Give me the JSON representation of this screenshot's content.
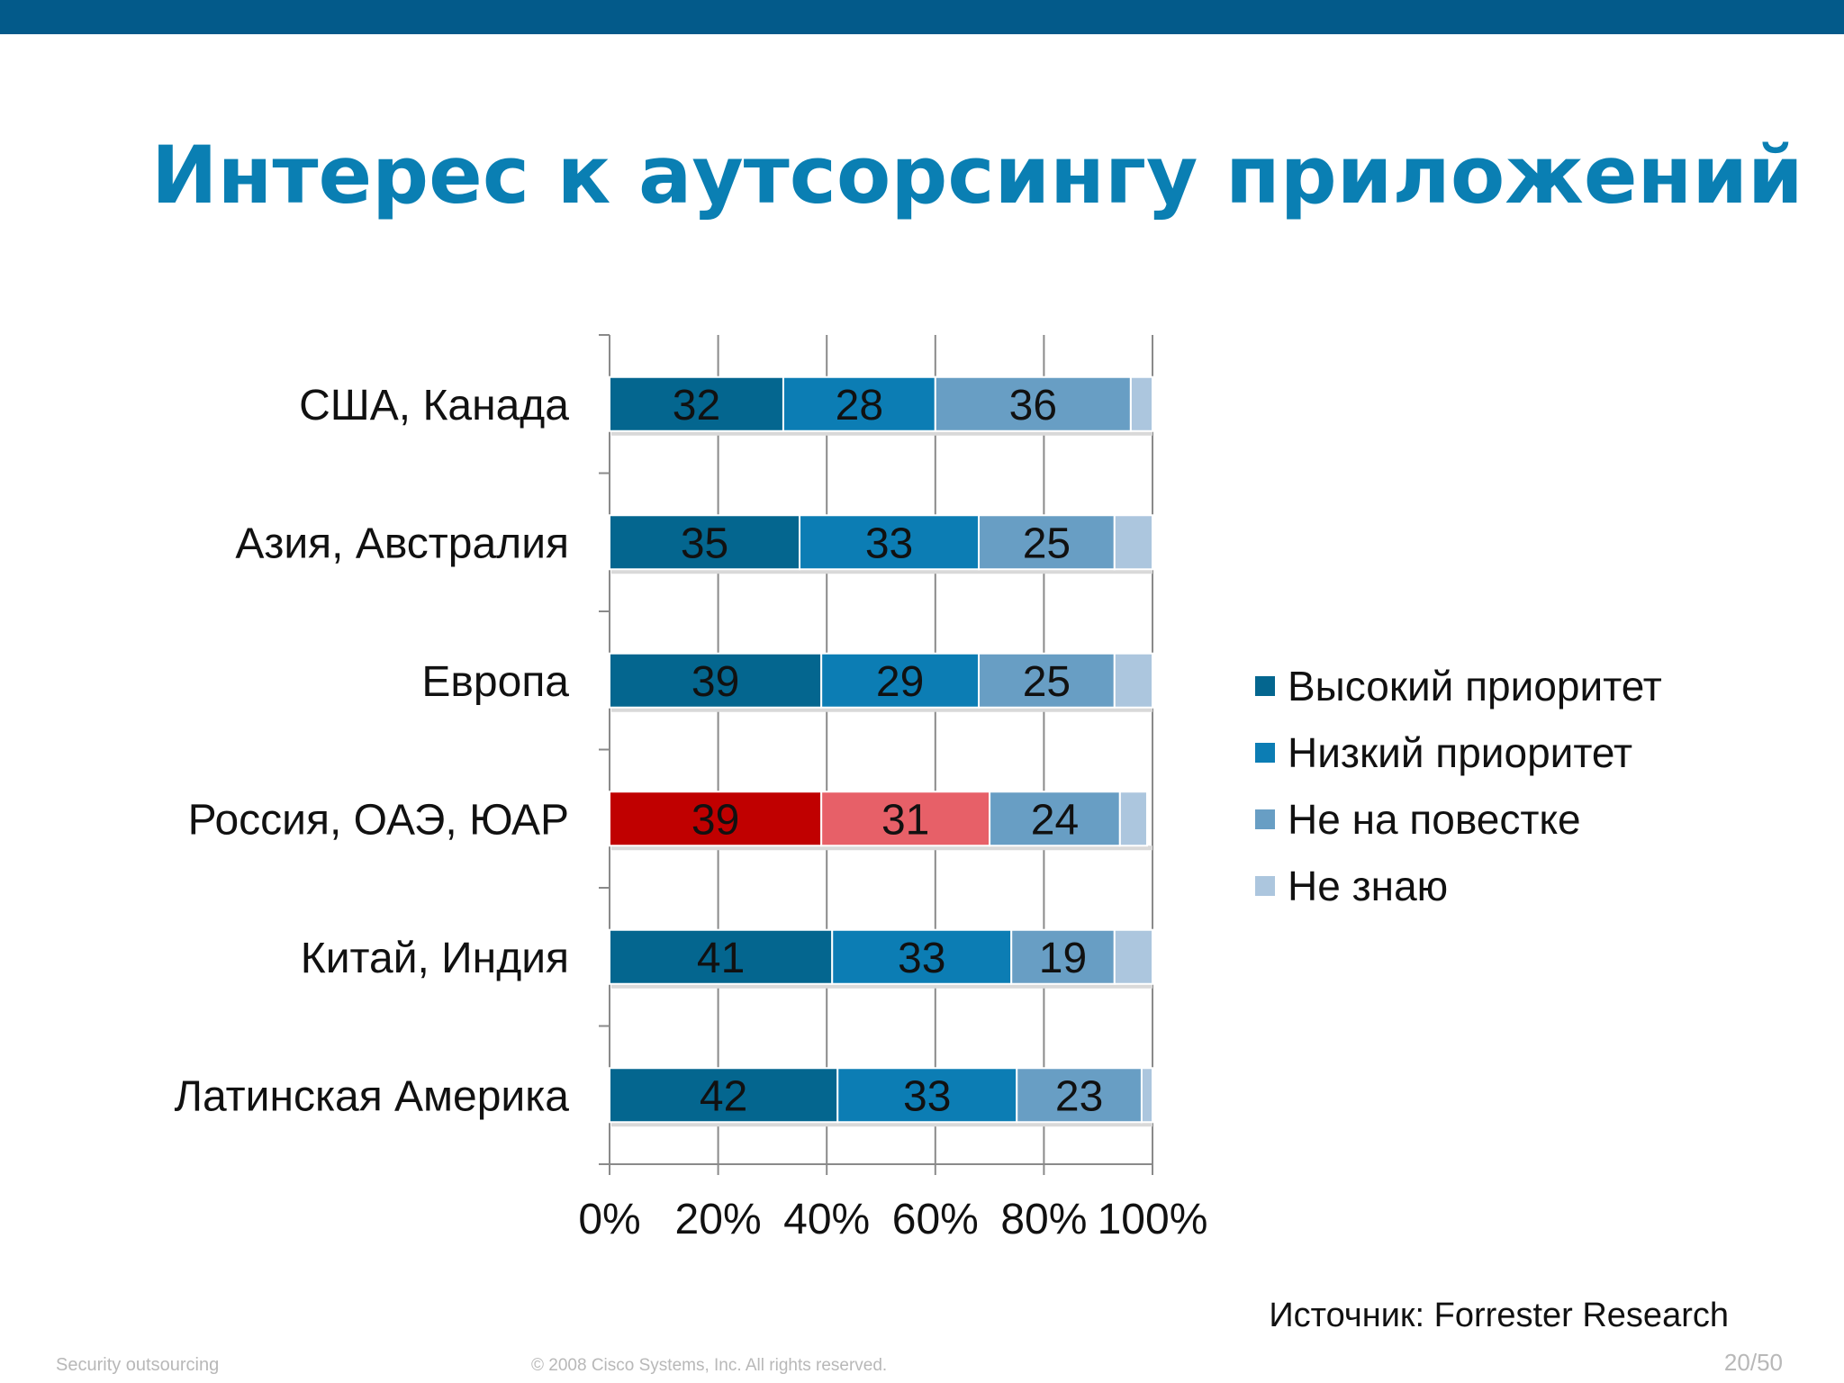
{
  "slide": {
    "title": "Интерес к аутсорсингу приложений",
    "source": "Источник: Forrester Research",
    "footer_left": "Security outsourcing",
    "footer_copyright": "© 2008 Cisco Systems, Inc. All rights reserved.",
    "page_number": "20/50"
  },
  "colors": {
    "top_bar": "#035a8a",
    "title": "#0a7fb3"
  },
  "chart_data": {
    "type": "bar",
    "orientation": "horizontal",
    "stacked": "percent",
    "title": "",
    "xlabel": "",
    "ylabel": "",
    "xlim": [
      0,
      100
    ],
    "x_ticks": [
      "0%",
      "20%",
      "40%",
      "60%",
      "80%",
      "100%"
    ],
    "grid": true,
    "legend_position": "right",
    "categories": [
      "США, Канада",
      "Азия, Австралия",
      "Европа",
      "Россия, ОАЭ, ЮАР",
      "Китай, Индия",
      "Латинская Америка"
    ],
    "series": [
      {
        "name": "Высокий приоритет",
        "values": [
          32,
          35,
          39,
          39,
          41,
          42
        ],
        "color": "#04668f"
      },
      {
        "name": "Низкий приоритет",
        "values": [
          28,
          33,
          29,
          31,
          33,
          33
        ],
        "color": "#0c7db4"
      },
      {
        "name": "Не на повестке",
        "values": [
          36,
          25,
          25,
          24,
          19,
          23
        ],
        "color": "#689ec4"
      },
      {
        "name": "Не знаю",
        "values": [
          4,
          7,
          7,
          5,
          7,
          2
        ],
        "color": "#acc6de"
      }
    ],
    "highlight": {
      "category": "Россия, ОАЭ, ЮАР",
      "colors": [
        "#c00000",
        "#e76068",
        "#689ec4",
        "#acc6de"
      ]
    },
    "data_labels": [
      [
        "32",
        "28",
        "36",
        ""
      ],
      [
        "35",
        "33",
        "25",
        ""
      ],
      [
        "39",
        "29",
        "25",
        ""
      ],
      [
        "39",
        "31",
        "24",
        ""
      ],
      [
        "41",
        "33",
        "19",
        ""
      ],
      [
        "42",
        "33",
        "23",
        ""
      ]
    ]
  }
}
